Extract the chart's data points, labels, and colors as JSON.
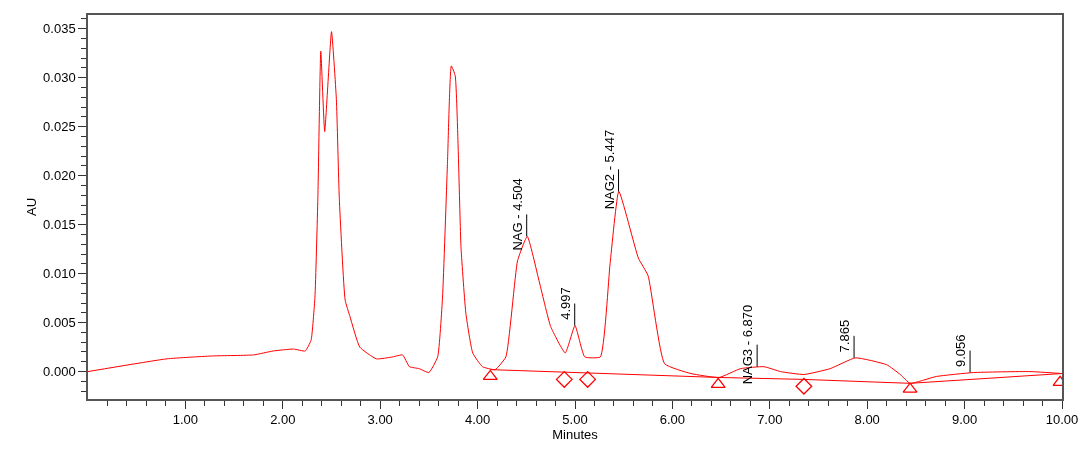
{
  "chart_data": {
    "type": "line",
    "xlabel": "Minutes",
    "ylabel": "AU",
    "xlim": [
      0,
      10
    ],
    "ylim": [
      -0.0028,
      0.0364
    ],
    "xticks": [
      {
        "value": 1,
        "label": "1.00"
      },
      {
        "value": 2,
        "label": "2.00"
      },
      {
        "value": 3,
        "label": "3.00"
      },
      {
        "value": 4,
        "label": "4.00"
      },
      {
        "value": 5,
        "label": "5.00"
      },
      {
        "value": 6,
        "label": "6.00"
      },
      {
        "value": 7,
        "label": "7.00"
      },
      {
        "value": 8,
        "label": "8.00"
      },
      {
        "value": 9,
        "label": "9.00"
      },
      {
        "value": 10,
        "label": "10.00"
      },
      {
        "value": 0.2,
        "label": null
      },
      {
        "value": 0.4,
        "label": null
      },
      {
        "value": 0.6,
        "label": null
      },
      {
        "value": 0.8,
        "label": null
      },
      {
        "value": 1.2,
        "label": null
      },
      {
        "value": 1.4,
        "label": null
      },
      {
        "value": 1.6,
        "label": null
      },
      {
        "value": 1.8,
        "label": null
      },
      {
        "value": 2.2,
        "label": null
      },
      {
        "value": 2.4,
        "label": null
      },
      {
        "value": 2.6,
        "label": null
      },
      {
        "value": 2.8,
        "label": null
      },
      {
        "value": 3.2,
        "label": null
      },
      {
        "value": 3.4,
        "label": null
      },
      {
        "value": 3.6,
        "label": null
      },
      {
        "value": 3.8,
        "label": null
      },
      {
        "value": 4.2,
        "label": null
      },
      {
        "value": 4.4,
        "label": null
      },
      {
        "value": 4.6,
        "label": null
      },
      {
        "value": 4.8,
        "label": null
      },
      {
        "value": 5.2,
        "label": null
      },
      {
        "value": 5.4,
        "label": null
      },
      {
        "value": 5.6,
        "label": null
      },
      {
        "value": 5.8,
        "label": null
      },
      {
        "value": 6.2,
        "label": null
      },
      {
        "value": 6.4,
        "label": null
      },
      {
        "value": 6.6,
        "label": null
      },
      {
        "value": 6.8,
        "label": null
      },
      {
        "value": 7.2,
        "label": null
      },
      {
        "value": 7.4,
        "label": null
      },
      {
        "value": 7.6,
        "label": null
      },
      {
        "value": 7.8,
        "label": null
      },
      {
        "value": 8.2,
        "label": null
      },
      {
        "value": 8.4,
        "label": null
      },
      {
        "value": 8.6,
        "label": null
      },
      {
        "value": 8.8,
        "label": null
      },
      {
        "value": 9.2,
        "label": null
      },
      {
        "value": 9.4,
        "label": null
      },
      {
        "value": 9.6,
        "label": null
      },
      {
        "value": 9.8,
        "label": null
      }
    ],
    "yticks": [
      {
        "value": 0,
        "label": "0.000"
      },
      {
        "value": 0.005,
        "label": "0.005"
      },
      {
        "value": 0.01,
        "label": "0.010"
      },
      {
        "value": 0.015,
        "label": "0.015"
      },
      {
        "value": 0.02,
        "label": "0.020"
      },
      {
        "value": 0.025,
        "label": "0.025"
      },
      {
        "value": 0.03,
        "label": "0.030"
      },
      {
        "value": 0.035,
        "label": "0.035"
      },
      {
        "value": -0.002,
        "label": null
      },
      {
        "value": -0.001,
        "label": null
      },
      {
        "value": 0.001,
        "label": null
      },
      {
        "value": 0.002,
        "label": null
      },
      {
        "value": 0.003,
        "label": null
      },
      {
        "value": 0.004,
        "label": null
      },
      {
        "value": 0.006,
        "label": null
      },
      {
        "value": 0.007,
        "label": null
      },
      {
        "value": 0.008,
        "label": null
      },
      {
        "value": 0.009,
        "label": null
      },
      {
        "value": 0.011,
        "label": null
      },
      {
        "value": 0.012,
        "label": null
      },
      {
        "value": 0.013,
        "label": null
      },
      {
        "value": 0.014,
        "label": null
      },
      {
        "value": 0.016,
        "label": null
      },
      {
        "value": 0.017,
        "label": null
      },
      {
        "value": 0.018,
        "label": null
      },
      {
        "value": 0.019,
        "label": null
      },
      {
        "value": 0.021,
        "label": null
      },
      {
        "value": 0.022,
        "label": null
      },
      {
        "value": 0.023,
        "label": null
      },
      {
        "value": 0.024,
        "label": null
      },
      {
        "value": 0.026,
        "label": null
      },
      {
        "value": 0.027,
        "label": null
      },
      {
        "value": 0.028,
        "label": null
      },
      {
        "value": 0.029,
        "label": null
      },
      {
        "value": 0.031,
        "label": null
      },
      {
        "value": 0.032,
        "label": null
      },
      {
        "value": 0.033,
        "label": null
      },
      {
        "value": 0.034,
        "label": null
      },
      {
        "value": 0.036,
        "label": null
      }
    ],
    "grid": false,
    "series": [
      {
        "color": "#ff0000",
        "marker": "none",
        "x": [
          0,
          0.81,
          1.29,
          1.7,
          1.9,
          2.11,
          2.23,
          2.29,
          2.33,
          2.36,
          2.39,
          2.43,
          2.5,
          2.55,
          2.58,
          2.64,
          2.69,
          2.79,
          2.96,
          3.13,
          3.23,
          3.3,
          3.4,
          3.5,
          3.59,
          3.64,
          3.69,
          3.73,
          3.77,
          3.83,
          3.88,
          3.95,
          4.05,
          4.18,
          4.29,
          4.41,
          4.51,
          4.63,
          4.75,
          4.9,
          5.0,
          5.1,
          5.26,
          5.36,
          5.45,
          5.65,
          5.75,
          5.92,
          6.19,
          6.48,
          6.7,
          6.94,
          7.11,
          7.35,
          7.62,
          7.88,
          8.2,
          8.34,
          8.44,
          8.71,
          9.09,
          9.67,
          10.0
        ],
        "values": [
          0.0,
          0.0013,
          0.0016,
          0.0017,
          0.0021,
          0.0023,
          0.0021,
          0.0032,
          0.0076,
          0.0177,
          0.0327,
          0.0245,
          0.0347,
          0.0278,
          0.0177,
          0.0073,
          0.0056,
          0.0025,
          0.0013,
          0.0015,
          0.0017,
          0.0005,
          0.0003,
          -0.0001,
          0.0015,
          0.0076,
          0.0211,
          0.0312,
          0.0302,
          0.0126,
          0.0059,
          0.0019,
          0.0005,
          0.0002,
          0.0015,
          0.0113,
          0.0138,
          0.0093,
          0.0046,
          0.0019,
          0.0047,
          0.0015,
          0.0015,
          0.011,
          0.0184,
          0.0116,
          0.0098,
          0.0008,
          -0.0002,
          -0.0006,
          0.0003,
          0.0005,
          0.0,
          -0.0003,
          0.0003,
          0.0014,
          0.0007,
          -0.0003,
          -0.0012,
          -0.0005,
          -0.0001,
          0.0,
          -0.0002
        ]
      },
      {
        "color": "#ff0000",
        "marker": "none",
        "x": [
          4.13,
          6.47,
          7.35,
          8.44,
          10.0
        ],
        "values": [
          0.0002,
          -0.0006,
          -0.0008,
          -0.0012,
          -0.0002
        ]
      },
      {
        "type": "scatter",
        "color": "#ff0000",
        "marker": "triangle",
        "x": [
          4.13,
          6.47,
          8.44,
          9.98
        ],
        "values": [
          -0.0005,
          -0.0013,
          -0.0018,
          -0.0011
        ]
      },
      {
        "type": "scatter",
        "color": "#ff0000",
        "marker": "diamond",
        "x": [
          4.89,
          5.13,
          7.35
        ],
        "values": [
          -0.0008,
          -0.0008,
          -0.0015
        ]
      }
    ],
    "annotations": [
      {
        "text": "NAG - 4.504",
        "x": 4.504,
        "y": 0.0138
      },
      {
        "text": "4.997",
        "x": 4.997,
        "y": 0.0047
      },
      {
        "text": "NAG2 - 5.447",
        "x": 5.447,
        "y": 0.0184
      },
      {
        "text": "NAG3 - 6.870",
        "x": 6.87,
        "y": 0.0005
      },
      {
        "text": "7.865",
        "x": 7.865,
        "y": 0.0014
      },
      {
        "text": "9.056",
        "x": 9.056,
        "y": -0.0001
      }
    ]
  }
}
